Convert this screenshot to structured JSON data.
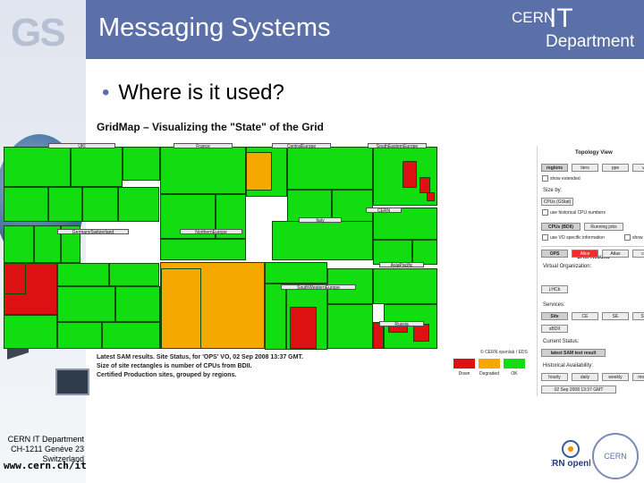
{
  "header": {
    "logo": "GS",
    "title": "Messaging Systems",
    "cern_label": "CERN",
    "it_label": "IT",
    "department_label": "Department"
  },
  "slide": {
    "bullet": "Where is it used?"
  },
  "gridmap": {
    "title": "GridMap – Visualizing the \"State\" of the Grid",
    "regions": [
      "UKI",
      "France",
      "CentralEurope",
      "SouthEasternEurope",
      "CERN",
      "Italy",
      "GermanySwitzerland",
      "NorthernEurope",
      "AsiaPacific",
      "SouthWesternEurope",
      "Russia"
    ],
    "status_lines": [
      "Latest SAM results. Site Status, for 'OPS' VO, 02 Sep 2008 13:37 GMT.",
      "Size of site rectangles is number of CPUs from BDII.",
      "Certified Production sites, grouped by regions."
    ],
    "legend": [
      {
        "label": "Down",
        "color": "#dd1111"
      },
      {
        "label": "Degraded",
        "color": "#f5a800"
      },
      {
        "label": "OK",
        "color": "#11dd11"
      }
    ],
    "copyright": "© CERN openlab / EDS"
  },
  "panel": {
    "topology_title": "Topology View",
    "topology_buttons": [
      "regions",
      "tiers",
      "ppe",
      "vos"
    ],
    "show_extended": "show extended",
    "size_by": "Size by:",
    "cpus_option": "CPUs (GStat)",
    "historical_cpu": "use historical CPU numbers",
    "cpus_bdii": "CPUs (BDII)",
    "running_jobs": "Running jobs",
    "vo_specific": "use VO specific information",
    "show_all": "show",
    "sam_title": "SAM Results",
    "vo_label": "Virtual Organization:",
    "vo_buttons": [
      "OPS",
      "Alice",
      "Atlas",
      "cms"
    ],
    "vo_extra": "LHCb",
    "services_label": "Services:",
    "service_buttons": [
      "Site",
      "CE",
      "SE",
      "SRM"
    ],
    "service_extra": "sBDII",
    "current_status": "Current Status:",
    "latest_button": "latest SAM test result",
    "historical": "Historical Availability:",
    "history_buttons": [
      "hourly",
      "daily",
      "weekly",
      "monthly"
    ],
    "timestamp": "02 Sep 2008 13:37 GMT"
  },
  "footer": {
    "line1": "CERN IT Department",
    "line2": "CH-1211 Genève 23",
    "line3": "Switzerland",
    "url": "www.cern.ch/it",
    "openlab": "CERN openlab",
    "ring": "CERN"
  },
  "colors": {
    "header": "#5b6fa8",
    "ok": "#11dd11",
    "down": "#dd1111",
    "degraded": "#f5a800"
  }
}
